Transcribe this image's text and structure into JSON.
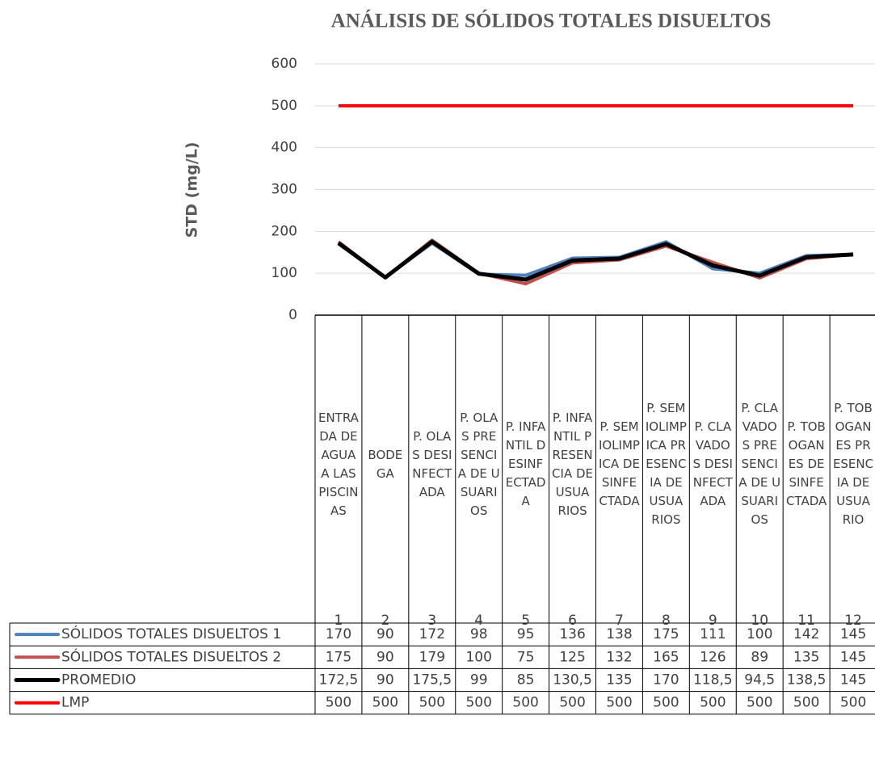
{
  "chart_data": {
    "type": "line",
    "title": "ANÁLISIS DE SÓLIDOS TOTALES DISUELTOS",
    "y_label": "STD (mg/L)",
    "categories": [
      "ENTRADA DE AGUA A LAS PISCINAS",
      "BODEGA",
      "P. OLAS DESINFECTADA",
      "P. OLAS PRESENCIA DE USUARIOS",
      "P. INFANTIL DESINFECTADA",
      "P. INFANTIL PRESENCIA DE USUARIOS",
      "P. SEMIOLIMPICA DESINFECTADA",
      "P. SEMIOLIMPICA PRESENCIA DE USUARIOS",
      "P. CLAVADOS DESINFECTADA",
      "P. CLAVADOS PRESENCIA DE USUARIOS",
      "P. TOBOGANES DESINFECTADA",
      "P. TOBOGANES PRESENCIA DE USUARIO"
    ],
    "category_numbers": [
      "1",
      "2",
      "3",
      "4",
      "5",
      "6",
      "7",
      "8",
      "9",
      "10",
      "11",
      "12"
    ],
    "series": [
      {
        "name": "SÓLIDOS TOTALES DISUELTOS 1",
        "color": "#4f81bd",
        "width": 4,
        "values": [
          170,
          90,
          172,
          98,
          95,
          136,
          138,
          175,
          111,
          100,
          142,
          145
        ]
      },
      {
        "name": "SÓLIDOS TOTALES DISUELTOS 2",
        "color": "#c0504d",
        "width": 4,
        "values": [
          175,
          90,
          179,
          100,
          75,
          125,
          132,
          165,
          126,
          89,
          135,
          145
        ]
      },
      {
        "name": "PROMEDIO",
        "color": "#000000",
        "width": 5,
        "values": [
          172.5,
          90,
          175.5,
          99,
          85,
          130.5,
          135,
          170,
          118.5,
          94.5,
          138.5,
          145
        ],
        "value_labels": [
          "172,5",
          "90",
          "175,5",
          "99",
          "85",
          "130,5",
          "135",
          "170",
          "118,5",
          "94,5",
          "138,5",
          "145"
        ]
      },
      {
        "name": "LMP",
        "color": "#ff0000",
        "width": 4,
        "values": [
          500,
          500,
          500,
          500,
          500,
          500,
          500,
          500,
          500,
          500,
          500,
          500
        ]
      }
    ],
    "ylim": [
      0,
      600
    ],
    "yticks": [
      0,
      100,
      200,
      300,
      400,
      500,
      600
    ],
    "grid": true
  }
}
